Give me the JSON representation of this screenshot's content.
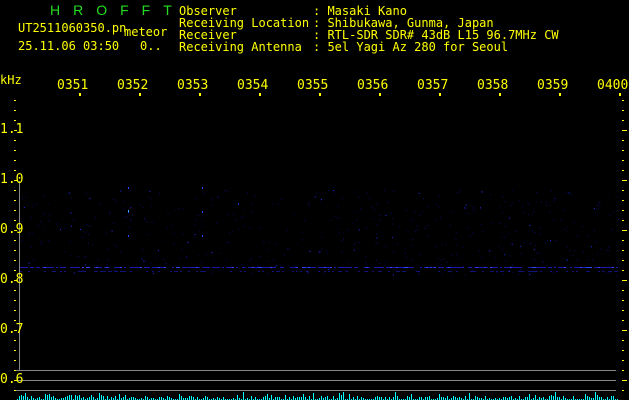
{
  "header": {
    "brand": "HROFFT",
    "filename": "UT2511060350.pn",
    "mode": "meteor",
    "datetime": "25.11.06 03:50",
    "count": "0..",
    "info": [
      {
        "label": "Observer",
        "value": ": Masaki Kano"
      },
      {
        "label": "Receiving Location",
        "value": ": Shibukawa, Gunma, Japan"
      },
      {
        "label": "Receiver",
        "value": ": RTL-SDR SDR# 43dB L15 96.7MHz CW"
      },
      {
        "label": "Receiving Antenna",
        "value": ": 5el Yagi Az 280 for Seoul"
      }
    ]
  },
  "axis": {
    "unit": "kHz",
    "time_labels": [
      "0351",
      "0352",
      "0353",
      "0354",
      "0355",
      "0356",
      "0357",
      "0358",
      "0359",
      "0400"
    ],
    "freq_labels": [
      "1.1",
      "1.0",
      "0.9",
      "0.8",
      "0.7",
      "0.6"
    ]
  },
  "colors": {
    "text": "#ffff00",
    "brand": "#22dd22",
    "signal": "#2222ff",
    "level": "#00ffff",
    "grid": "#888888"
  }
}
